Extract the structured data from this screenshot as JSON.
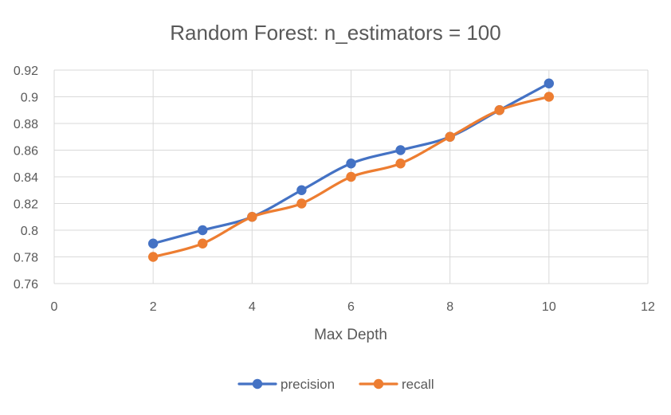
{
  "chart_data": {
    "type": "line",
    "title": "Random Forest: n_estimators = 100",
    "xlabel": "Max Depth",
    "ylabel": "",
    "xlim": [
      0,
      12
    ],
    "ylim": [
      0.76,
      0.92
    ],
    "x_ticks": [
      0,
      2,
      4,
      6,
      8,
      10,
      12
    ],
    "x_tick_labels": [
      "0",
      "2",
      "4",
      "6",
      "8",
      "10",
      "12"
    ],
    "y_ticks": [
      0.76,
      0.78,
      0.8,
      0.82,
      0.84,
      0.86,
      0.88,
      0.9,
      0.92
    ],
    "y_tick_labels": [
      "0.76",
      "0.78",
      "0.8",
      "0.82",
      "0.84",
      "0.86",
      "0.88",
      "0.9",
      "0.92"
    ],
    "grid": true,
    "smooth": true,
    "legend_position": "bottom",
    "series": [
      {
        "name": "precision",
        "color": "#4472c4",
        "x": [
          2,
          3,
          4,
          5,
          6,
          7,
          8,
          9,
          10
        ],
        "values": [
          0.79,
          0.8,
          0.81,
          0.83,
          0.85,
          0.86,
          0.87,
          0.89,
          0.91
        ]
      },
      {
        "name": "recall",
        "color": "#ed7d31",
        "x": [
          2,
          3,
          4,
          5,
          6,
          7,
          8,
          9,
          10
        ],
        "values": [
          0.78,
          0.79,
          0.81,
          0.82,
          0.84,
          0.85,
          0.87,
          0.89,
          0.9
        ]
      }
    ]
  }
}
